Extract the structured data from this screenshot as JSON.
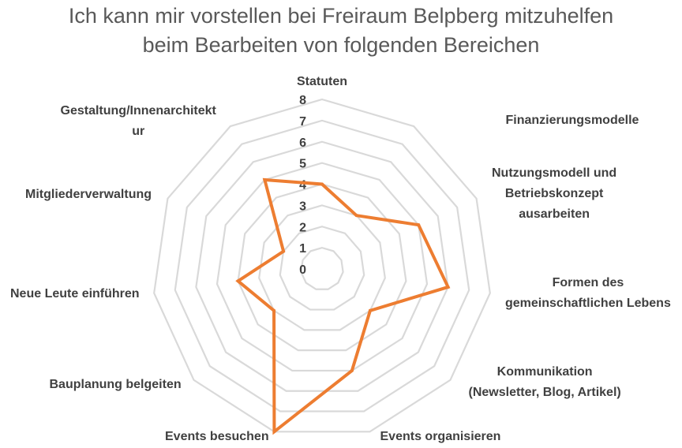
{
  "chart_data": {
    "type": "radar",
    "title": [
      "Ich kann mir vorstellen bei Freiraum Belpberg mitzuhelfen",
      "beim Bearbeiten von folgenden Bereichen"
    ],
    "categories": [
      [
        "Statuten"
      ],
      [
        "Finanzierungsmodelle"
      ],
      [
        "Nutzungsmodell und",
        "Betriebskonzept",
        "ausarbeiten"
      ],
      [
        "Formen des",
        "gemeinschaftlichen Lebens"
      ],
      [
        "Kommunikation",
        "(Newsletter, Blog, Artikel)"
      ],
      [
        "Events organisieren"
      ],
      [
        "Events besuchen"
      ],
      [
        "Bauplanung belgeiten"
      ],
      [
        "Neue Leute einführen"
      ],
      [
        "Mitgliederverwaltung"
      ],
      [
        "Gestaltung/Innenarchitekt",
        "ur"
      ]
    ],
    "values": [
      4,
      3,
      5,
      6,
      3,
      5,
      8,
      3,
      4,
      2,
      5
    ],
    "rlim": [
      0,
      8
    ],
    "ticks": [
      0,
      1,
      2,
      3,
      4,
      5,
      6,
      7,
      8
    ],
    "grid": true,
    "series_color": "#ED7D31",
    "grid_color": "#D9D9D9"
  }
}
